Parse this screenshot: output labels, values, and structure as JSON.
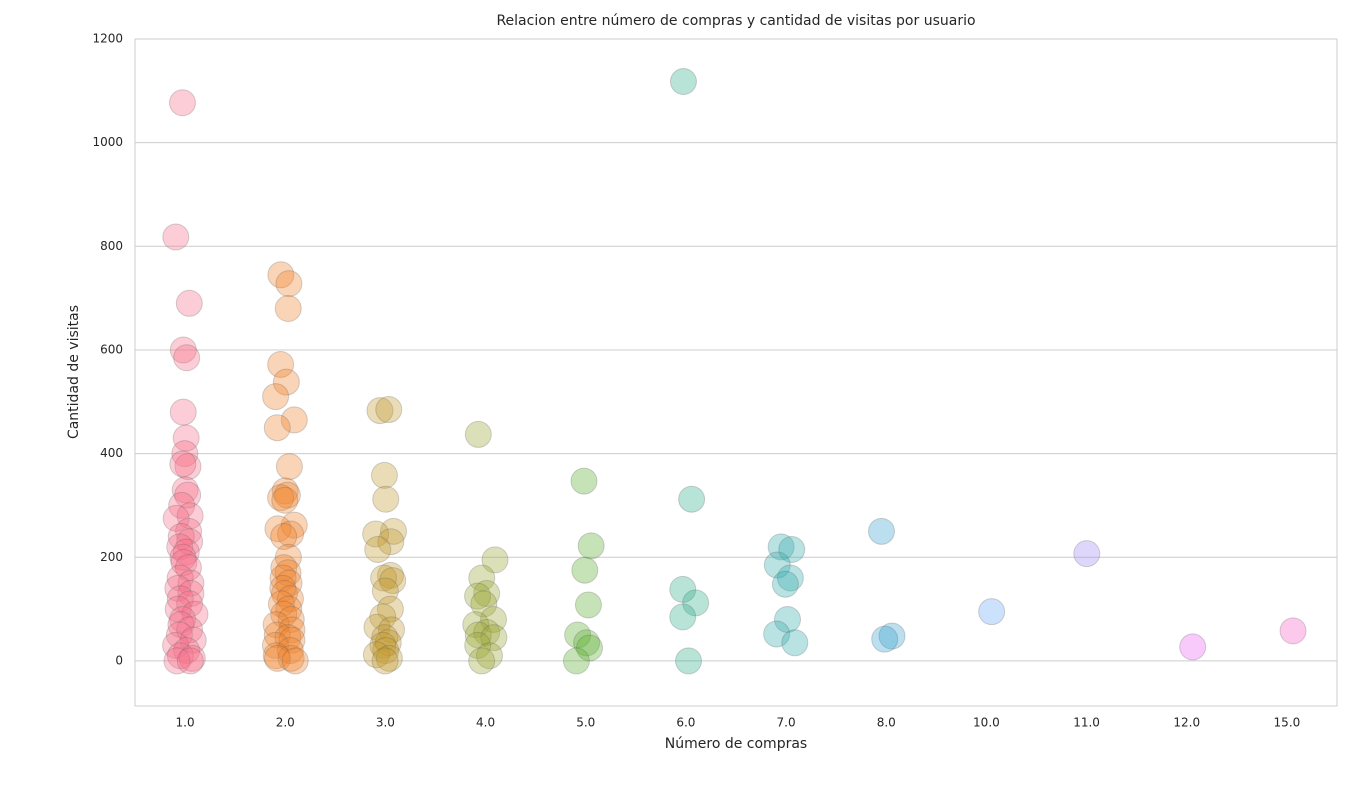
{
  "chart_data": {
    "type": "strip",
    "title": "Relacion entre número de compras y cantidad de visitas por usuario",
    "x_label": "Número de compras",
    "y_label": "Cantidad de visitas",
    "categories": [
      "1.0",
      "2.0",
      "3.0",
      "4.0",
      "5.0",
      "6.0",
      "7.0",
      "8.0",
      "10.0",
      "11.0",
      "12.0",
      "15.0"
    ],
    "colors": [
      "#f77189",
      "#f0842f",
      "#c39a32",
      "#9ca534",
      "#5cb031",
      "#34ae8d",
      "#37abb0",
      "#3ba3cd",
      "#6ea8f4",
      "#a48cf4",
      "#e866f4",
      "#f562c8"
    ],
    "values": [
      [
        1077,
        818,
        690,
        600,
        585,
        480,
        430,
        400,
        375,
        380,
        330,
        320,
        300,
        280,
        275,
        250,
        240,
        230,
        220,
        210,
        200,
        190,
        180,
        160,
        150,
        140,
        130,
        120,
        110,
        100,
        90,
        80,
        70,
        60,
        50,
        40,
        30,
        20,
        10,
        5,
        0,
        0
      ],
      [
        745,
        728,
        680,
        572,
        538,
        510,
        465,
        450,
        375,
        328,
        320,
        315,
        310,
        262,
        255,
        245,
        240,
        200,
        180,
        170,
        160,
        150,
        140,
        130,
        120,
        110,
        100,
        90,
        80,
        70,
        60,
        50,
        45,
        40,
        30,
        20,
        10,
        5,
        5,
        0
      ],
      [
        483,
        485,
        358,
        312,
        250,
        245,
        230,
        215,
        165,
        160,
        155,
        135,
        100,
        85,
        65,
        60,
        45,
        35,
        30,
        20,
        12,
        5,
        0
      ],
      [
        437,
        195,
        160,
        130,
        125,
        110,
        80,
        70,
        55,
        50,
        45,
        30,
        10,
        0
      ],
      [
        347,
        222,
        175,
        108,
        50,
        35,
        25,
        0
      ],
      [
        1118,
        312,
        138,
        112,
        85,
        0
      ],
      [
        220,
        215,
        185,
        160,
        148,
        80,
        52,
        35
      ],
      [
        250,
        48,
        42
      ],
      [
        95
      ],
      [
        207
      ],
      [
        27
      ],
      [
        58
      ]
    ],
    "ylim": [
      -87,
      1200
    ],
    "yticks": [
      0,
      200,
      400,
      600,
      800,
      1000,
      1200
    ],
    "grid": true
  }
}
